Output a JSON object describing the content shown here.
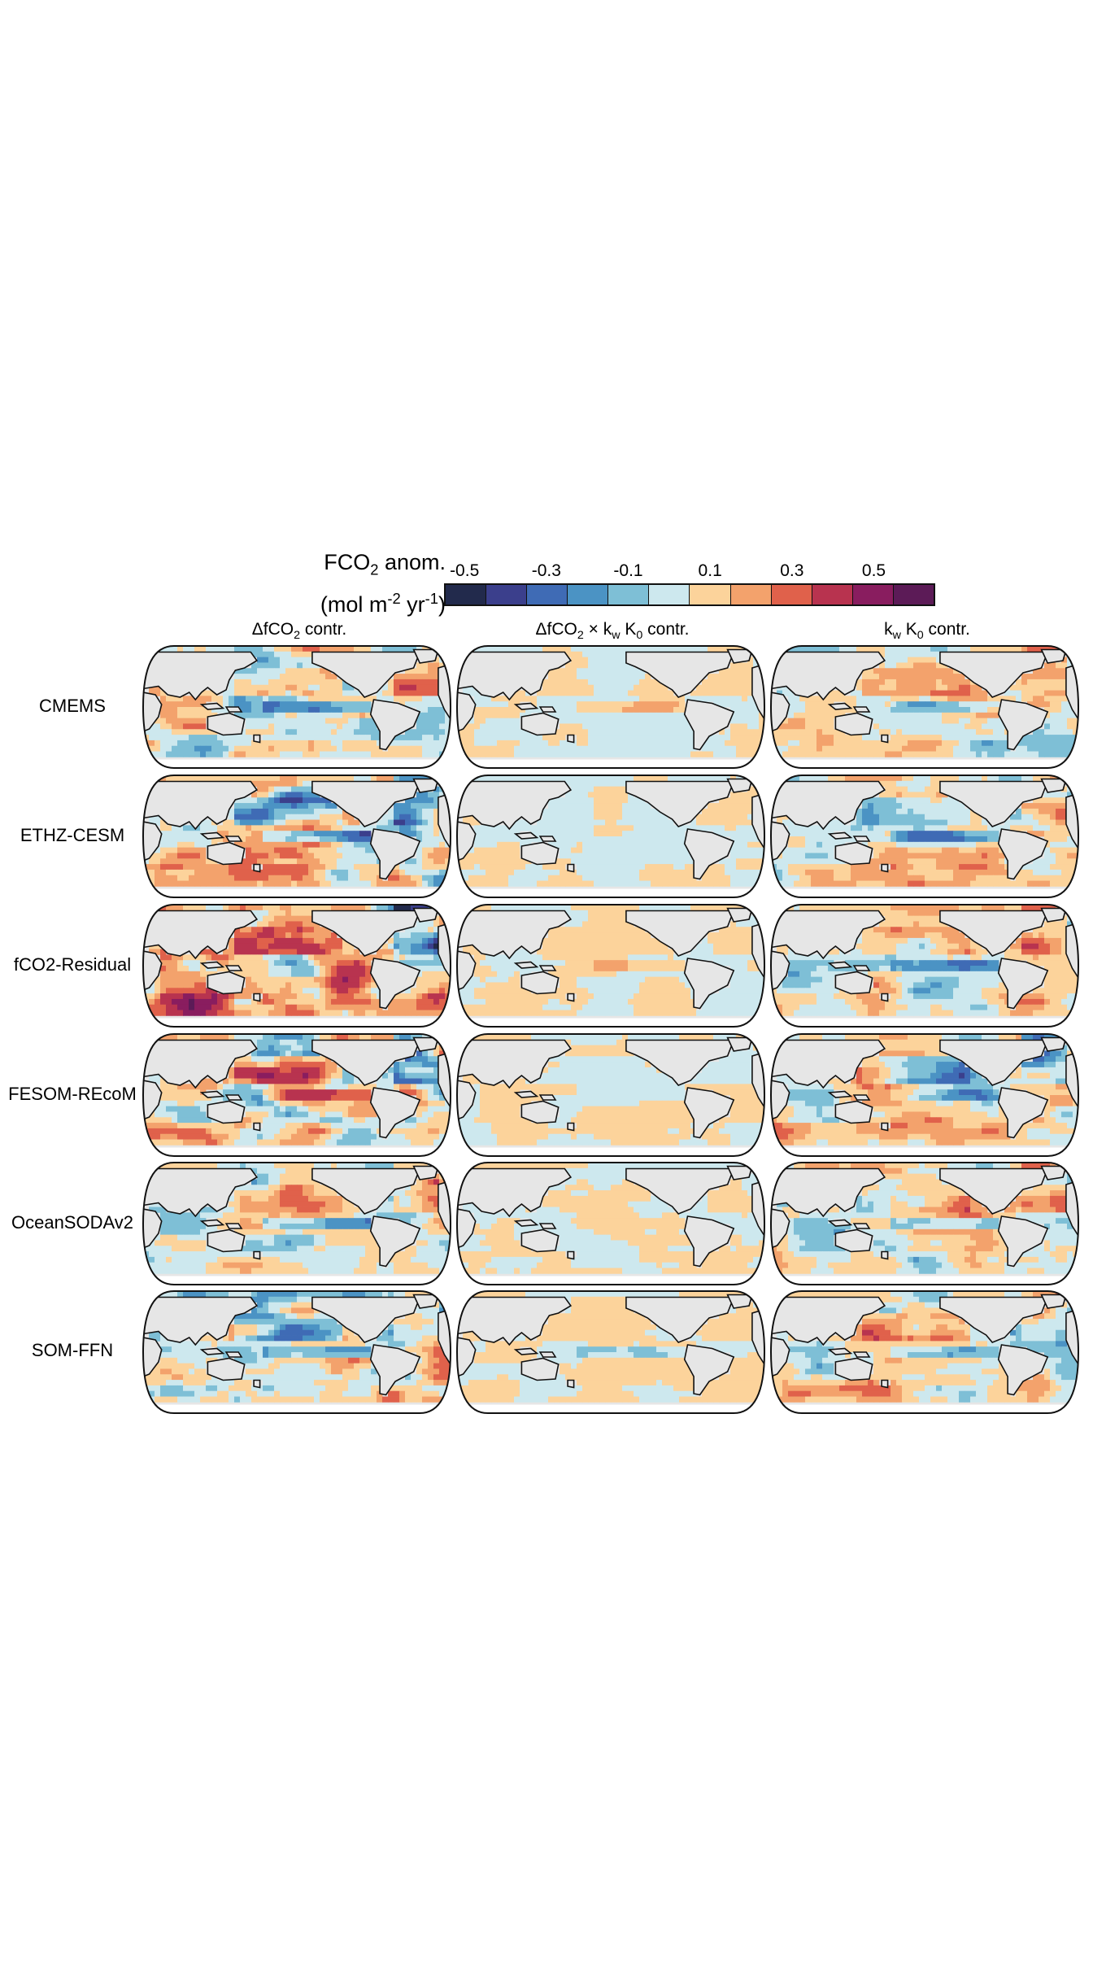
{
  "chart_data": {
    "type": "heatmap",
    "colorbar": {
      "title": "FCO2 anom.",
      "title_base": "FCO",
      "title_sub": "2",
      "title_tail": " anom.",
      "units_pre": "(mol m",
      "units_sup1": "-2",
      "units_mid": " yr",
      "units_sup2": "-1",
      "units_post": ")",
      "tick_labels": [
        "-0.5",
        "-0.3",
        "-0.1",
        "0.1",
        "0.3",
        "0.5"
      ],
      "bounds": [
        -0.6,
        -0.5,
        -0.4,
        -0.3,
        -0.2,
        -0.1,
        0.0,
        0.1,
        0.2,
        0.3,
        0.4,
        0.5,
        0.6
      ],
      "colors": [
        "#222a4c",
        "#3b3f8c",
        "#3f6bb5",
        "#4b93c4",
        "#7ebfd6",
        "#cde8ee",
        "#fcd39b",
        "#f3a26c",
        "#e0614b",
        "#b8334f",
        "#891d5f",
        "#5c1b57"
      ]
    },
    "columns": [
      {
        "pre": "ΔfCO",
        "sub": "2",
        "post": " contr."
      },
      {
        "pre": "ΔfCO",
        "sub": "2",
        "mid": " × k",
        "sub2": "w",
        "mid2": " K",
        "sub3": "0",
        "post": " contr."
      },
      {
        "pre": "k",
        "sub": "w",
        "mid": " K",
        "sub2": "0",
        "post": " contr."
      }
    ],
    "rows": [
      "CMEMS",
      "ETHZ-CESM",
      "fCO2-Residual",
      "FESOM-REcoM",
      "OceanSODAv2",
      "SOM-FFN"
    ],
    "projection": "Robinson, Pacific-centred (approx. 150°W central meridian)",
    "land_color": "#e6e6e6",
    "missing_color": "#ffffff"
  }
}
